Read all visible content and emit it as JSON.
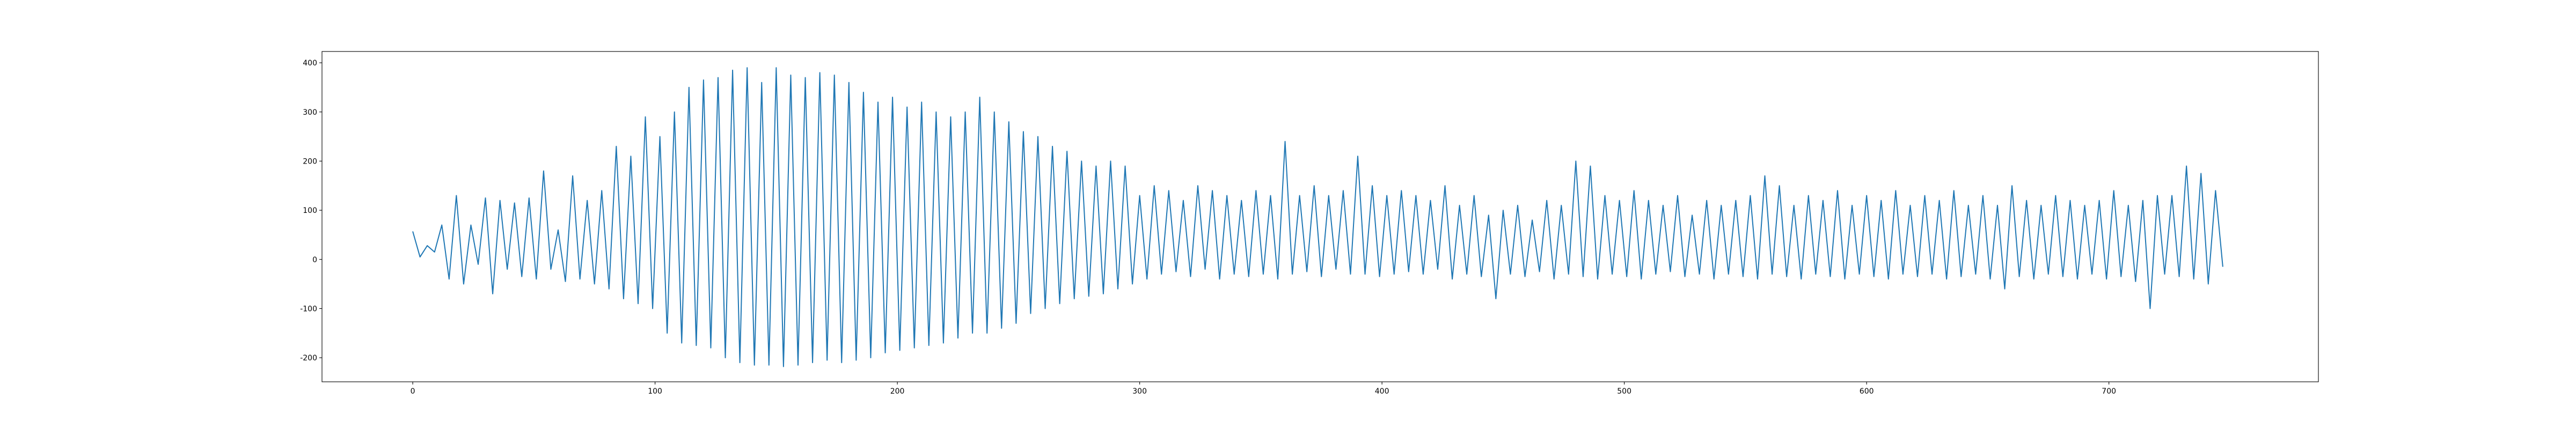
{
  "chart_data": {
    "type": "line",
    "color": "#1f77b4",
    "xlim": [
      -37.45,
      786.45
    ],
    "ylim": [
      -249,
      423
    ],
    "xticks": [
      0,
      100,
      200,
      300,
      400,
      500,
      600,
      700
    ],
    "yticks": [
      -200,
      -100,
      0,
      100,
      200,
      300,
      400
    ],
    "x": [
      0,
      3,
      6,
      9,
      12,
      15,
      18,
      21,
      24,
      27,
      30,
      33,
      36,
      39,
      42,
      45,
      48,
      51,
      54,
      57,
      60,
      63,
      66,
      69,
      72,
      75,
      78,
      81,
      84,
      87,
      90,
      93,
      96,
      99,
      102,
      105,
      108,
      111,
      114,
      117,
      120,
      123,
      126,
      129,
      132,
      135,
      138,
      141,
      144,
      147,
      150,
      153,
      156,
      159,
      162,
      165,
      168,
      171,
      174,
      177,
      180,
      183,
      186,
      189,
      192,
      195,
      198,
      201,
      204,
      207,
      210,
      213,
      216,
      219,
      222,
      225,
      228,
      231,
      234,
      237,
      240,
      243,
      246,
      249,
      252,
      255,
      258,
      261,
      264,
      267,
      270,
      273,
      276,
      279,
      282,
      285,
      288,
      291,
      294,
      297,
      300,
      303,
      306,
      309,
      312,
      315,
      318,
      321,
      324,
      327,
      330,
      333,
      336,
      339,
      342,
      345,
      348,
      351,
      354,
      357,
      360,
      363,
      366,
      369,
      372,
      375,
      378,
      381,
      384,
      387,
      390,
      393,
      396,
      399,
      402,
      405,
      408,
      411,
      414,
      417,
      420,
      423,
      426,
      429,
      432,
      435,
      438,
      441,
      444,
      447,
      450,
      453,
      456,
      459,
      462,
      465,
      468,
      471,
      474,
      477,
      480,
      483,
      486,
      489,
      492,
      495,
      498,
      501,
      504,
      507,
      510,
      513,
      516,
      519,
      522,
      525,
      528,
      531,
      534,
      537,
      540,
      543,
      546,
      549,
      552,
      555,
      558,
      561,
      564,
      567,
      570,
      573,
      576,
      579,
      582,
      585,
      588,
      591,
      594,
      597,
      600,
      603,
      606,
      609,
      612,
      615,
      618,
      621,
      624,
      627,
      630,
      633,
      636,
      639,
      642,
      645,
      648,
      651,
      654,
      657,
      660,
      663,
      666,
      669,
      672,
      675,
      678,
      681,
      684,
      687,
      690,
      693,
      696,
      699,
      702,
      705,
      708,
      711,
      714,
      717,
      720,
      723,
      726,
      729,
      732,
      735,
      738,
      741,
      744,
      747
    ],
    "values": [
      57,
      5,
      28,
      15,
      70,
      -40,
      130,
      -50,
      70,
      -10,
      125,
      -70,
      120,
      -20,
      115,
      -35,
      125,
      -40,
      180,
      -20,
      60,
      -45,
      170,
      -40,
      120,
      -50,
      140,
      -60,
      230,
      -80,
      210,
      -90,
      290,
      -100,
      250,
      -150,
      300,
      -170,
      350,
      -175,
      365,
      -180,
      370,
      -200,
      385,
      -210,
      390,
      -215,
      360,
      -215,
      390,
      -218,
      375,
      -215,
      370,
      -210,
      380,
      -205,
      375,
      -210,
      360,
      -205,
      340,
      -200,
      320,
      -190,
      330,
      -185,
      310,
      -180,
      320,
      -175,
      300,
      -170,
      290,
      -160,
      300,
      -150,
      330,
      -150,
      300,
      -140,
      280,
      -130,
      260,
      -110,
      250,
      -100,
      230,
      -90,
      220,
      -80,
      200,
      -75,
      190,
      -70,
      200,
      -60,
      190,
      -50,
      130,
      -40,
      150,
      -30,
      140,
      -25,
      120,
      -35,
      150,
      -20,
      140,
      -40,
      130,
      -30,
      120,
      -35,
      140,
      -30,
      130,
      -40,
      240,
      -30,
      130,
      -25,
      150,
      -35,
      130,
      -20,
      140,
      -30,
      210,
      -30,
      150,
      -35,
      130,
      -30,
      140,
      -25,
      130,
      -30,
      120,
      -20,
      150,
      -40,
      110,
      -30,
      130,
      -35,
      90,
      -80,
      100,
      -30,
      110,
      -35,
      80,
      -25,
      120,
      -40,
      110,
      -30,
      200,
      -35,
      190,
      -40,
      130,
      -30,
      120,
      -35,
      140,
      -40,
      120,
      -30,
      110,
      -25,
      130,
      -35,
      90,
      -30,
      120,
      -40,
      110,
      -30,
      120,
      -35,
      130,
      -40,
      170,
      -30,
      150,
      -35,
      110,
      -40,
      130,
      -30,
      120,
      -35,
      140,
      -40,
      110,
      -30,
      130,
      -35,
      120,
      -40,
      140,
      -30,
      110,
      -35,
      130,
      -30,
      120,
      -40,
      140,
      -35,
      110,
      -30,
      130,
      -40,
      110,
      -60,
      150,
      -35,
      120,
      -40,
      110,
      -30,
      130,
      -35,
      120,
      -40,
      110,
      -30,
      120,
      -40,
      140,
      -35,
      110,
      -45,
      120,
      -100,
      130,
      -30,
      130,
      -35,
      190,
      -40,
      175,
      -50,
      140,
      -15
    ]
  }
}
